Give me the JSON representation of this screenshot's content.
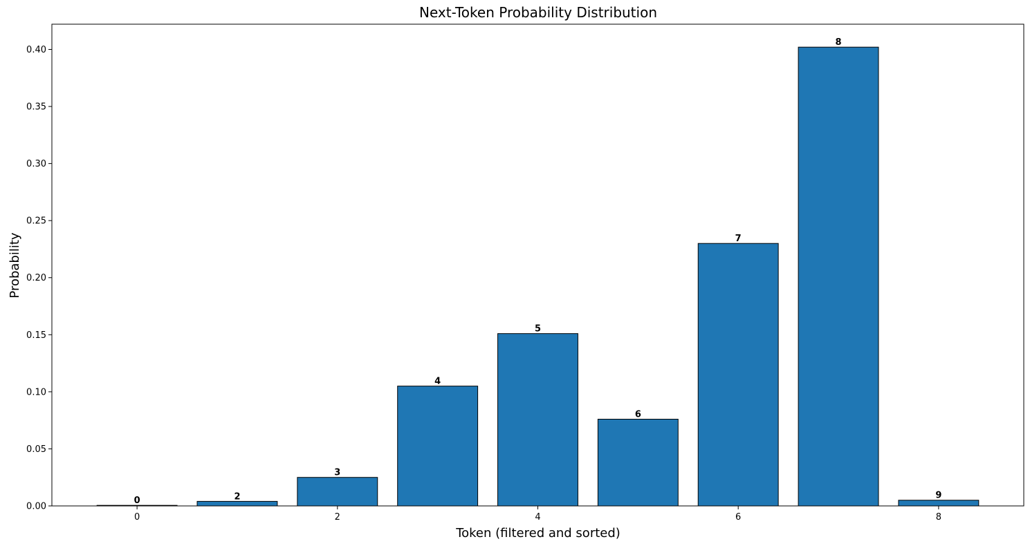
{
  "chart_data": {
    "type": "bar",
    "title": "Next-Token Probability Distribution",
    "xlabel": "Token (filtered and sorted)",
    "ylabel": "Probability",
    "x": [
      0,
      1,
      2,
      3,
      4,
      5,
      6,
      7,
      8
    ],
    "values": [
      0.0005,
      0.004,
      0.025,
      0.105,
      0.151,
      0.076,
      0.23,
      0.402,
      0.005
    ],
    "bar_labels": [
      "0",
      "2",
      "3",
      "4",
      "5",
      "6",
      "7",
      "8",
      "9"
    ],
    "xlim": [
      -0.85,
      8.85
    ],
    "ylim": [
      0,
      0.4221
    ],
    "x_ticks": [
      0,
      2,
      4,
      6,
      8
    ],
    "y_ticks": [
      "0.00",
      "0.05",
      "0.10",
      "0.15",
      "0.20",
      "0.25",
      "0.30",
      "0.35",
      "0.40"
    ],
    "bar_color": "#1f77b4",
    "edge_color": "#000000",
    "grid": false
  }
}
